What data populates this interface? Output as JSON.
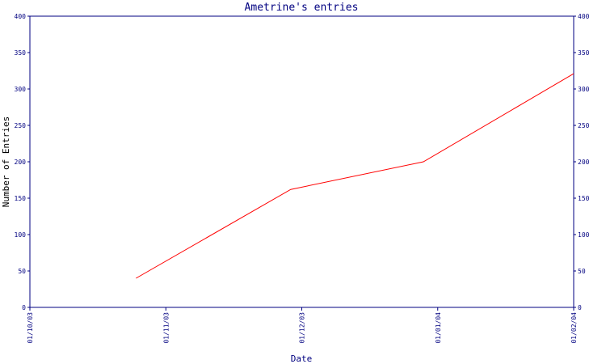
{
  "chart_data": {
    "type": "line",
    "title": "Ametrine's entries",
    "xlabel": "Date",
    "ylabel": "Number of Entries",
    "x_ticks": [
      "01/10/03",
      "01/11/03",
      "01/12/03",
      "01/01/04",
      "01/02/04"
    ],
    "y_ticks": [
      0,
      50,
      100,
      150,
      200,
      250,
      300,
      350,
      400
    ],
    "ylim": [
      0,
      400
    ],
    "xlim": [
      "2003-10-01",
      "2004-02-01"
    ],
    "grid": false,
    "series": [
      {
        "x": [
          "2003-10-25",
          "2003-11-29",
          "2003-12-29",
          "2004-02-01"
        ],
        "values": [
          40,
          162,
          200,
          321
        ]
      }
    ],
    "colors": {
      "line": "#ff0000",
      "axis": "#000080"
    }
  }
}
